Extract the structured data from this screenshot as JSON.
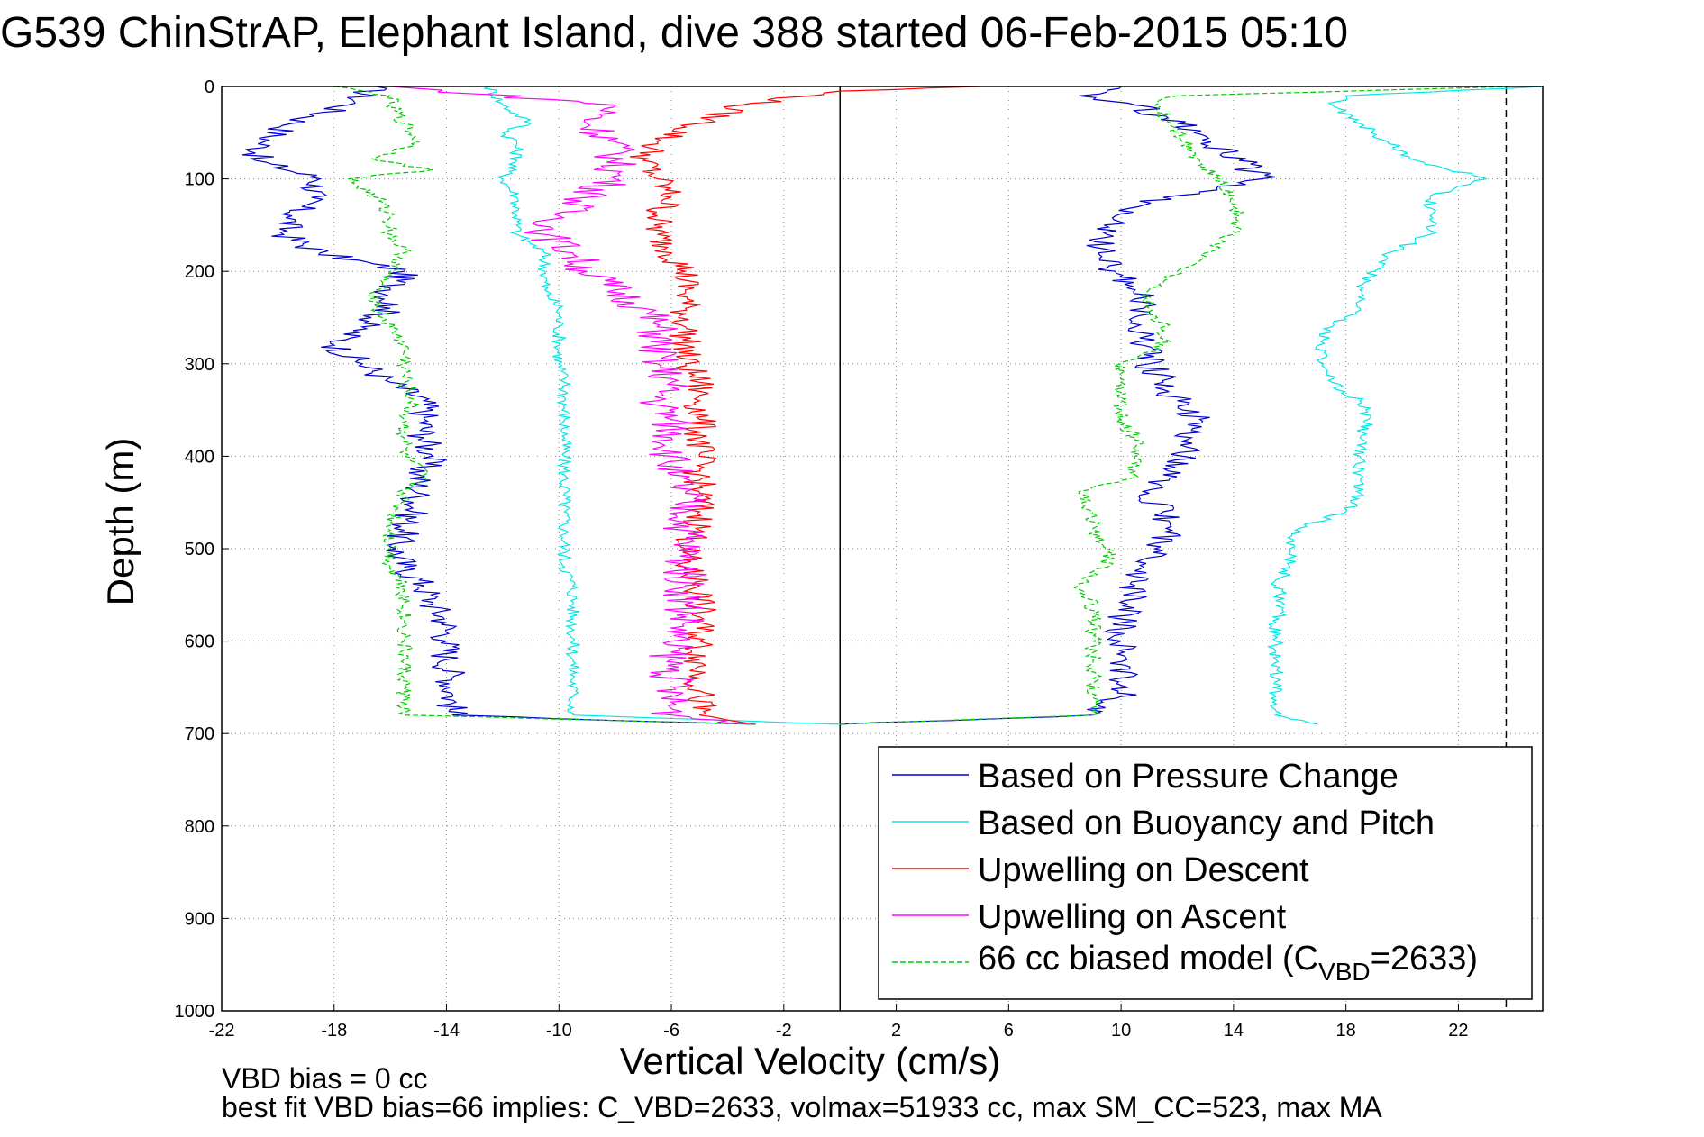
{
  "page": {
    "title": "G539 ChinStrAP, Elephant Island, dive 388 started 06-Feb-2015 05:10",
    "notes": [
      "VBD bias = 0 cc",
      "best fit VBD bias=66 implies: C_VBD=2633, volmax=51933 cc, max SM_CC=523, max MA"
    ]
  },
  "chart_data": {
    "type": "line",
    "title": "G539 ChinStrAP, Elephant Island, dive 388 started 06-Feb-2015 05:10",
    "xlabel": "Vertical Velocity (cm/s)",
    "ylabel": "Depth (m)",
    "xlim": [
      -22,
      25
    ],
    "ylim": [
      0,
      1000
    ],
    "y_reversed": true,
    "grid": true,
    "legend_position": "bottom-right",
    "x_ticks": [
      -22,
      -18,
      -14,
      -10,
      -6,
      -2,
      2,
      6,
      10,
      14,
      18,
      22
    ],
    "y_ticks": [
      0,
      100,
      200,
      300,
      400,
      500,
      600,
      700,
      800,
      900,
      1000
    ],
    "reference_lines": [
      {
        "axis": "x",
        "value": 0,
        "style": "solid",
        "color": "#000000"
      },
      {
        "axis": "x",
        "value": 23.7,
        "style": "dashed",
        "color": "#000000"
      }
    ],
    "series": [
      {
        "name": "Based on Pressure Change",
        "color": "#0000cc",
        "style": "solid",
        "descent": {
          "depth": [
            0,
            20,
            40,
            60,
            80,
            100,
            120,
            140,
            160,
            180,
            200,
            220,
            240,
            260,
            280,
            300,
            320,
            340,
            360,
            380,
            400,
            420,
            440,
            460,
            480,
            500,
            520,
            540,
            560,
            580,
            600,
            620,
            640,
            660,
            680,
            690
          ],
          "velocity": [
            -16.5,
            -17.5,
            -19.5,
            -20.5,
            -20.8,
            -18.5,
            -18.8,
            -19.5,
            -19.8,
            -18.5,
            -15.5,
            -16.0,
            -16.0,
            -17.0,
            -18.0,
            -17.0,
            -16.0,
            -14.8,
            -14.8,
            -14.8,
            -14.5,
            -15.0,
            -15.0,
            -15.2,
            -15.5,
            -15.8,
            -15.5,
            -14.8,
            -14.5,
            -14.0,
            -14.0,
            -14.0,
            -13.8,
            -13.8,
            -13.8,
            -3.0
          ]
        },
        "ascent": {
          "depth": [
            690,
            680,
            660,
            640,
            620,
            600,
            580,
            560,
            540,
            520,
            500,
            480,
            460,
            440,
            420,
            400,
            380,
            360,
            340,
            320,
            300,
            280,
            260,
            240,
            220,
            200,
            180,
            160,
            140,
            120,
            100,
            80,
            60,
            40,
            20,
            10,
            0
          ],
          "velocity": [
            0.0,
            9.0,
            10.0,
            10.0,
            10.2,
            10.0,
            10.0,
            10.2,
            10.5,
            10.8,
            11.2,
            11.8,
            11.5,
            11.0,
            11.5,
            12.2,
            12.5,
            12.8,
            12.0,
            11.5,
            11.0,
            10.8,
            10.5,
            10.8,
            10.5,
            9.8,
            9.2,
            9.5,
            9.8,
            11.5,
            15.0,
            14.2,
            13.2,
            12.0,
            10.5,
            8.5,
            10.0
          ]
        }
      },
      {
        "name": "Based on Buoyancy and Pitch",
        "color": "#00e6e6",
        "style": "solid",
        "descent": {
          "depth": [
            0,
            20,
            40,
            50,
            60,
            80,
            100,
            120,
            140,
            160,
            180,
            200,
            220,
            240,
            260,
            280,
            300,
            320,
            340,
            360,
            380,
            400,
            420,
            440,
            460,
            480,
            500,
            520,
            540,
            560,
            580,
            600,
            620,
            640,
            660,
            680,
            690
          ],
          "velocity": [
            -12.5,
            -12.0,
            -11.0,
            -12.0,
            -11.5,
            -11.5,
            -12.0,
            -11.5,
            -11.5,
            -11.5,
            -10.5,
            -10.5,
            -10.5,
            -10.0,
            -10.0,
            -10.0,
            -10.0,
            -9.8,
            -9.8,
            -9.8,
            -9.8,
            -9.8,
            -9.8,
            -9.8,
            -9.8,
            -9.8,
            -9.8,
            -9.8,
            -9.5,
            -9.5,
            -9.5,
            -9.5,
            -9.5,
            -9.5,
            -9.5,
            -9.5,
            0.0
          ]
        },
        "ascent": {
          "depth": [
            690,
            680,
            660,
            640,
            620,
            600,
            580,
            560,
            540,
            520,
            500,
            480,
            460,
            440,
            420,
            400,
            380,
            360,
            340,
            320,
            300,
            280,
            260,
            240,
            220,
            200,
            180,
            160,
            140,
            120,
            100,
            80,
            60,
            40,
            20,
            10,
            0
          ],
          "velocity": [
            17.0,
            15.5,
            15.5,
            15.5,
            15.5,
            15.5,
            15.5,
            15.8,
            15.5,
            16.0,
            16.0,
            16.2,
            18.0,
            18.5,
            18.5,
            18.5,
            18.5,
            18.8,
            18.5,
            17.5,
            17.2,
            17.0,
            17.5,
            18.5,
            18.5,
            19.0,
            19.5,
            21.0,
            21.0,
            21.0,
            23.0,
            20.5,
            19.5,
            18.5,
            17.5,
            18.0,
            25.0
          ]
        }
      },
      {
        "name": "Upwelling on Descent",
        "color": "#ff0000",
        "style": "solid",
        "depth": [
          0,
          5,
          20,
          40,
          60,
          80,
          100,
          120,
          140,
          160,
          180,
          200,
          220,
          240,
          260,
          280,
          300,
          320,
          340,
          360,
          380,
          400,
          420,
          440,
          460,
          480,
          500,
          520,
          540,
          560,
          580,
          600,
          620,
          640,
          660,
          680,
          690
        ],
        "velocity": [
          5.0,
          0.0,
          -3.5,
          -5.0,
          -6.5,
          -7.0,
          -6.5,
          -6.0,
          -6.5,
          -6.5,
          -6.0,
          -5.5,
          -5.5,
          -5.5,
          -5.5,
          -5.5,
          -5.5,
          -5.0,
          -5.0,
          -5.0,
          -5.0,
          -5.0,
          -5.0,
          -5.0,
          -5.0,
          -5.0,
          -5.5,
          -5.5,
          -5.0,
          -5.0,
          -5.0,
          -5.0,
          -5.0,
          -5.0,
          -5.0,
          -5.0,
          -3.0
        ]
      },
      {
        "name": "Upwelling on Ascent",
        "color": "#ff00ff",
        "style": "solid",
        "depth": [
          0,
          20,
          40,
          60,
          80,
          100,
          120,
          140,
          160,
          180,
          200,
          220,
          240,
          260,
          280,
          300,
          320,
          340,
          360,
          380,
          400,
          420,
          440,
          460,
          480,
          500,
          520,
          540,
          560,
          580,
          600,
          620,
          640,
          660,
          680,
          690
        ],
        "velocity": [
          -16.0,
          -8.0,
          -9.0,
          -8.0,
          -8.0,
          -8.0,
          -9.0,
          -10.0,
          -10.5,
          -9.5,
          -9.0,
          -8.0,
          -7.0,
          -6.5,
          -6.5,
          -6.5,
          -6.0,
          -6.5,
          -6.0,
          -6.0,
          -6.0,
          -6.0,
          -5.5,
          -5.5,
          -5.5,
          -5.5,
          -5.5,
          -5.5,
          -5.5,
          -5.5,
          -6.0,
          -6.0,
          -6.0,
          -6.0,
          -6.0,
          -3.0
        ]
      },
      {
        "name": "66 cc biased model (C_VBD=2633)",
        "color": "#00cc00",
        "style": "dashed",
        "descent": {
          "depth": [
            0,
            10,
            20,
            40,
            60,
            80,
            90,
            100,
            120,
            140,
            160,
            180,
            200,
            220,
            240,
            260,
            280,
            300,
            320,
            340,
            360,
            380,
            400,
            420,
            440,
            460,
            480,
            500,
            520,
            540,
            560,
            580,
            600,
            620,
            640,
            660,
            680,
            690
          ],
          "velocity": [
            -18.0,
            -16.0,
            -16.0,
            -15.5,
            -15.0,
            -16.5,
            -14.5,
            -17.5,
            -16.5,
            -16.0,
            -16.0,
            -15.5,
            -16.0,
            -16.5,
            -16.5,
            -16.0,
            -15.5,
            -15.5,
            -15.5,
            -15.2,
            -15.5,
            -15.5,
            -15.5,
            -14.8,
            -15.5,
            -15.8,
            -16.0,
            -16.0,
            -16.0,
            -15.5,
            -15.5,
            -15.5,
            -15.5,
            -15.5,
            -15.5,
            -15.5,
            -15.5,
            -3.0
          ]
        },
        "ascent": {
          "depth": [
            690,
            680,
            660,
            640,
            620,
            600,
            580,
            560,
            540,
            520,
            500,
            480,
            460,
            440,
            420,
            400,
            380,
            360,
            340,
            320,
            300,
            280,
            260,
            240,
            220,
            200,
            180,
            160,
            140,
            120,
            100,
            80,
            60,
            40,
            20,
            10,
            0
          ],
          "velocity": [
            0.0,
            9.0,
            9.0,
            9.0,
            9.0,
            9.0,
            9.0,
            9.0,
            8.5,
            9.5,
            9.5,
            9.0,
            9.0,
            8.5,
            10.5,
            10.5,
            10.5,
            10.0,
            10.0,
            10.0,
            10.0,
            11.5,
            11.5,
            11.0,
            11.0,
            12.0,
            13.0,
            14.0,
            14.2,
            14.0,
            13.5,
            12.8,
            12.2,
            11.8,
            11.2,
            12.0,
            24.0
          ]
        }
      }
    ]
  }
}
